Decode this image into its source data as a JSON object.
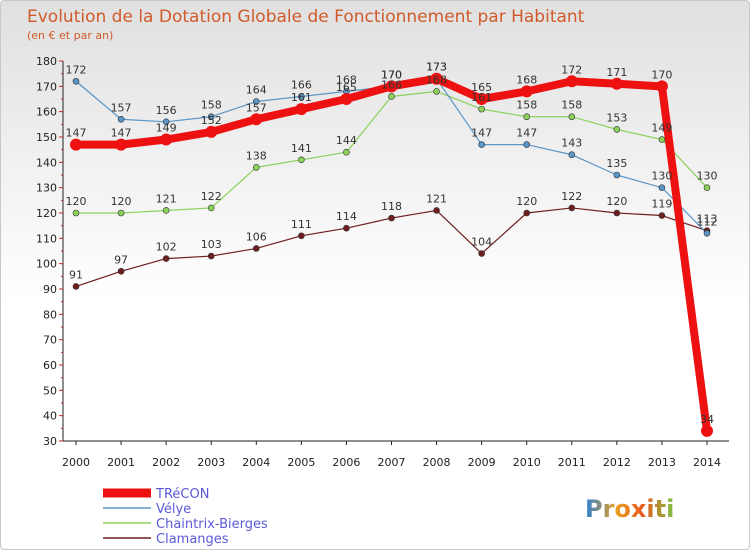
{
  "chart_data": {
    "type": "line",
    "title": "Evolution de la Dotation Globale de Fonctionnement par Habitant",
    "subtitle": "(en € et par an)",
    "xlabel": "",
    "ylabel": "",
    "ylim": [
      30,
      180
    ],
    "x": [
      "2000",
      "2001",
      "2002",
      "2003",
      "2004",
      "2005",
      "2006",
      "2007",
      "2008",
      "2009",
      "2010",
      "2011",
      "2012",
      "2013",
      "2014"
    ],
    "y_ticks": [
      "30",
      "40",
      "50",
      "60",
      "70",
      "80",
      "90",
      "100",
      "110",
      "120",
      "130",
      "140",
      "150",
      "160",
      "170",
      "180"
    ],
    "grid": false,
    "legend_position": "bottom-left",
    "series": [
      {
        "name": "TRéCON",
        "color": "#ee1111",
        "values": [
          147,
          147,
          149,
          152,
          157,
          161,
          165,
          170,
          173,
          165,
          168,
          172,
          171,
          170,
          34
        ]
      },
      {
        "name": "Vélye",
        "color": "#5a96c8",
        "values": [
          172,
          157,
          156,
          158,
          164,
          166,
          168,
          170,
          173,
          147,
          147,
          143,
          135,
          130,
          112
        ]
      },
      {
        "name": "Chaintrix-Bierges",
        "color": "#8ad25a",
        "values": [
          120,
          120,
          121,
          122,
          138,
          141,
          144,
          166,
          168,
          161,
          158,
          158,
          153,
          149,
          130
        ]
      },
      {
        "name": "Clamanges",
        "color": "#6e1e1e",
        "values": [
          91,
          97,
          102,
          103,
          106,
          111,
          114,
          118,
          121,
          104,
          120,
          122,
          120,
          119,
          113
        ]
      }
    ]
  },
  "logo": {
    "text": "Proxiti"
  }
}
